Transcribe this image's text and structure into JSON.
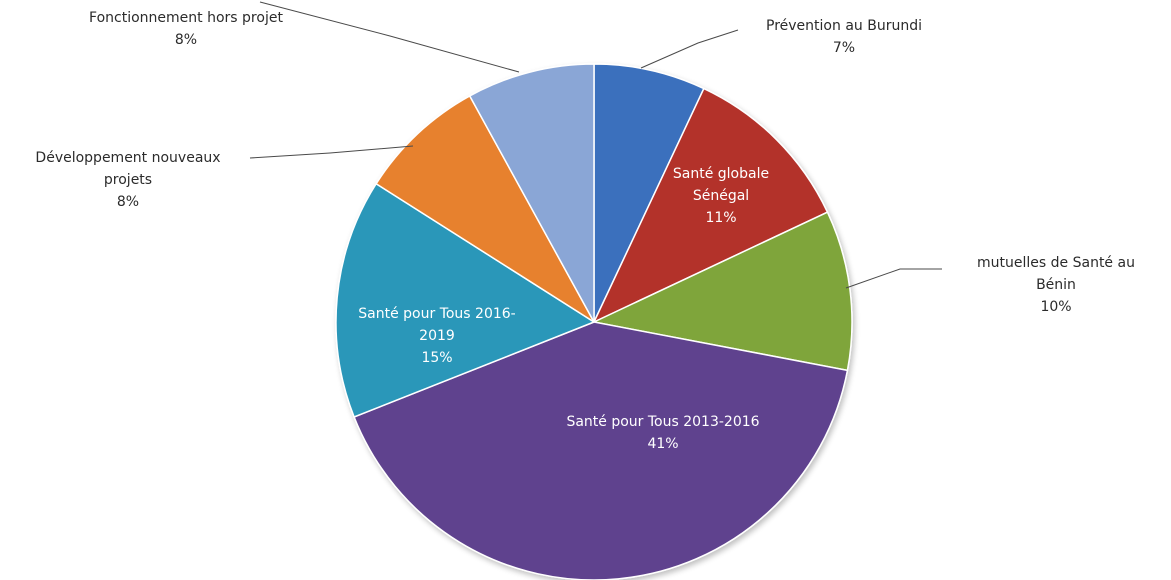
{
  "chart_data": {
    "type": "pie",
    "slices": [
      {
        "label": "Prévention au Burundi",
        "value": 7,
        "percent_label": "7%",
        "color": "#3a6fbd"
      },
      {
        "label": "Santé globale Sénégal",
        "value": 11,
        "percent_label": "11%",
        "color": "#b3302c"
      },
      {
        "label": "mutuelles de Santé au Bénin",
        "value": 10,
        "percent_label": "10%",
        "color": "#7fa53a"
      },
      {
        "label": "Santé pour Tous 2013-2016",
        "value": 41,
        "percent_label": "41%",
        "color": "#5f428e"
      },
      {
        "label": "Santé pour Tous 2016-2019",
        "value": 15,
        "percent_label": "15%",
        "color": "#2a97b9"
      },
      {
        "label": "Développement nouveaux projets",
        "value": 8,
        "percent_label": "8%",
        "color": "#e7812d"
      },
      {
        "label": "Fonctionnement hors projet",
        "value": 8,
        "percent_label": "8%",
        "color": "#8aa6d6"
      }
    ],
    "legend": "none"
  }
}
